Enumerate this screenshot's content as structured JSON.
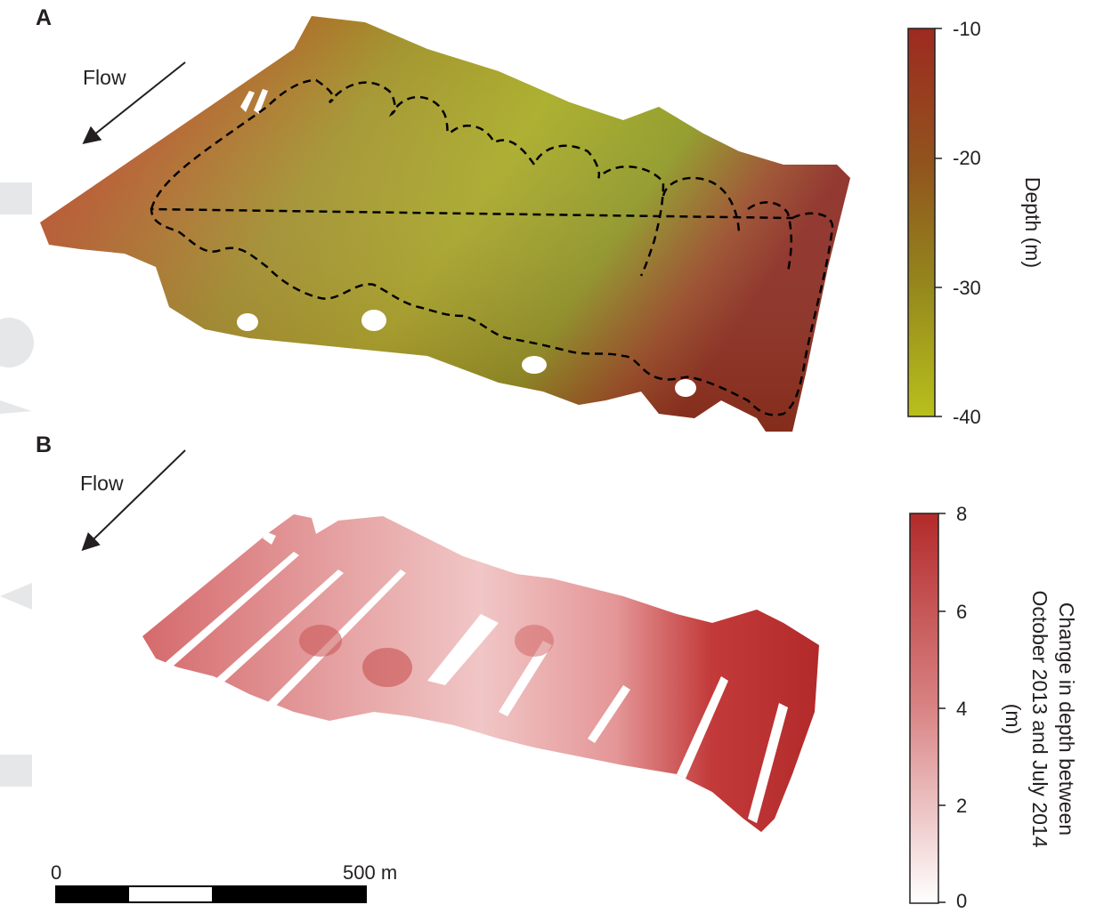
{
  "panel_a": {
    "letter": "A",
    "flow_label": "Flow",
    "colorbar": {
      "title": "Depth (m)",
      "ticks": [
        "-10",
        "-20",
        "-30",
        "-40"
      ],
      "color_top": "#9e2a20",
      "color_mid": "#8a6e1e",
      "color_bottom": "#b8c01c"
    },
    "outline_style": "dashed black"
  },
  "panel_b": {
    "letter": "B",
    "flow_label": "Flow",
    "colorbar": {
      "title_lines": [
        "Change in depth between",
        "October 2013 and July 2014",
        "(m)"
      ],
      "ticks": [
        "8",
        "6",
        "4",
        "2",
        "0"
      ],
      "color_top": "#b32a2a",
      "color_bottom": "#ffffff"
    }
  },
  "scale_bar": {
    "start_label": "0",
    "end_label": "500 m"
  }
}
